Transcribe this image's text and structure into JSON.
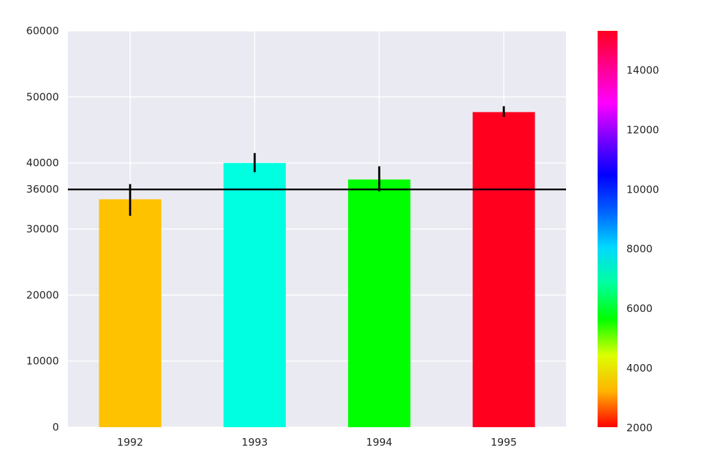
{
  "chart_data": {
    "type": "bar",
    "categories": [
      "1992",
      "1993",
      "1994",
      "1995"
    ],
    "values": [
      34500,
      40000,
      37500,
      47700
    ],
    "errors": [
      [
        32000,
        36800
      ],
      [
        38600,
        41500
      ],
      [
        35700,
        39500
      ],
      [
        47000,
        48600
      ]
    ],
    "bar_colors": [
      "#ffc200",
      "#00ffe0",
      "#00ff00",
      "#ff001f"
    ],
    "ylim": [
      0,
      60000
    ],
    "yticks": [
      0,
      10000,
      20000,
      30000,
      36000,
      40000,
      50000,
      60000
    ],
    "reference_line": 36000,
    "grid": true,
    "background": "#eaeaf2",
    "colorbar": {
      "range": [
        2000,
        15300
      ],
      "ticks": [
        2000,
        4000,
        6000,
        8000,
        10000,
        12000,
        14000
      ],
      "colormap": "hsv",
      "colors": [
        "#ff0000",
        "#ffb400",
        "#dcff00",
        "#00ff00",
        "#00ffa0",
        "#00d8ff",
        "#0060ff",
        "#0000ff",
        "#7800ff",
        "#ff00ff",
        "#ff0090",
        "#ff001e"
      ]
    }
  }
}
